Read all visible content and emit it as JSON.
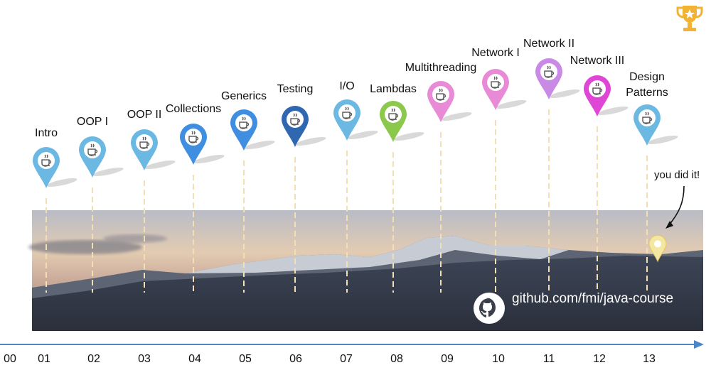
{
  "milestones": [
    {
      "label": "Intro",
      "color": "#6bb8e3",
      "week": "01"
    },
    {
      "label": "OOP I",
      "color": "#6bb8e3",
      "week": "02"
    },
    {
      "label": "OOP II",
      "color": "#6bb8e3",
      "week": "03"
    },
    {
      "label": "Collections",
      "color": "#3f8ee0",
      "week": "04"
    },
    {
      "label": "Generics",
      "color": "#3f8ee0",
      "week": "05"
    },
    {
      "label": "Testing",
      "color": "#2f68b0",
      "week": "06"
    },
    {
      "label": "I/O",
      "color": "#6bb8e3",
      "week": "07"
    },
    {
      "label": "Lambdas",
      "color": "#8cc84b",
      "week": "08"
    },
    {
      "label": "Multithreading",
      "color": "#e98ad6",
      "week": "09"
    },
    {
      "label": "Network I",
      "color": "#e98ad6",
      "week": "10"
    },
    {
      "label": "Network II",
      "color": "#c98ae6",
      "week": "11"
    },
    {
      "label": "Network III",
      "color": "#e046d6",
      "week": "12"
    },
    {
      "label": "Design Patterns",
      "color": "#6bb8e3",
      "week": "13"
    }
  ],
  "start_tick": "00",
  "finish": {
    "text": "you did it!",
    "color": "#f4e7a3"
  },
  "github": {
    "url_text": "github.com/fmi/java-course"
  },
  "colors": {
    "axis": "#4a86c8",
    "trophy": "#f2b233",
    "dash": "#f3dfb4"
  },
  "icons": {
    "pin": "java-cup-icon",
    "trophy": "trophy-icon",
    "github": "github-icon"
  }
}
